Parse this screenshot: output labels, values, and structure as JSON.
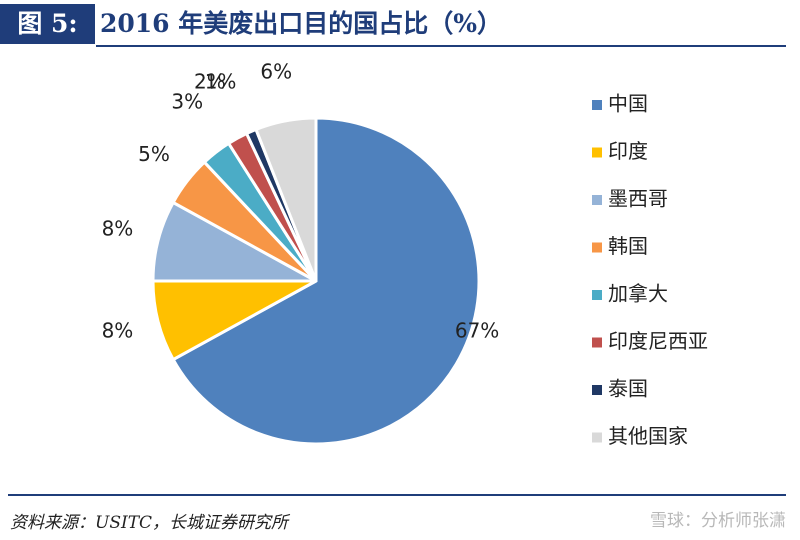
{
  "header": {
    "figure_label": "图 5:",
    "title": "2016 年美废出口目的国占比（%）"
  },
  "footer": {
    "source": "资料来源：USITC，长城证券研究所",
    "watermark": "雪球：分析师张潇"
  },
  "chart_data": {
    "type": "pie",
    "title": "2016 年美废出口目的国占比（%）",
    "legend_position": "right",
    "start_angle": "12 o'clock",
    "direction": "clockwise",
    "slices": [
      {
        "name": "中国",
        "value": 67,
        "label": "67%",
        "color": "#4f81bd"
      },
      {
        "name": "印度",
        "value": 8,
        "label": "8%",
        "color": "#ffc000"
      },
      {
        "name": "墨西哥",
        "value": 8,
        "label": "8%",
        "color": "#95b3d7"
      },
      {
        "name": "韩国",
        "value": 5,
        "label": "5%",
        "color": "#f79646"
      },
      {
        "name": "加拿大",
        "value": 3,
        "label": "3%",
        "color": "#4bacc6"
      },
      {
        "name": "印度尼西亚",
        "value": 2,
        "label": "2%",
        "color": "#c0504d"
      },
      {
        "name": "泰国",
        "value": 1,
        "label": "1%",
        "color": "#1f3864"
      },
      {
        "name": "其他国家",
        "value": 6,
        "label": "6%",
        "color": "#d9d9d9"
      }
    ]
  }
}
